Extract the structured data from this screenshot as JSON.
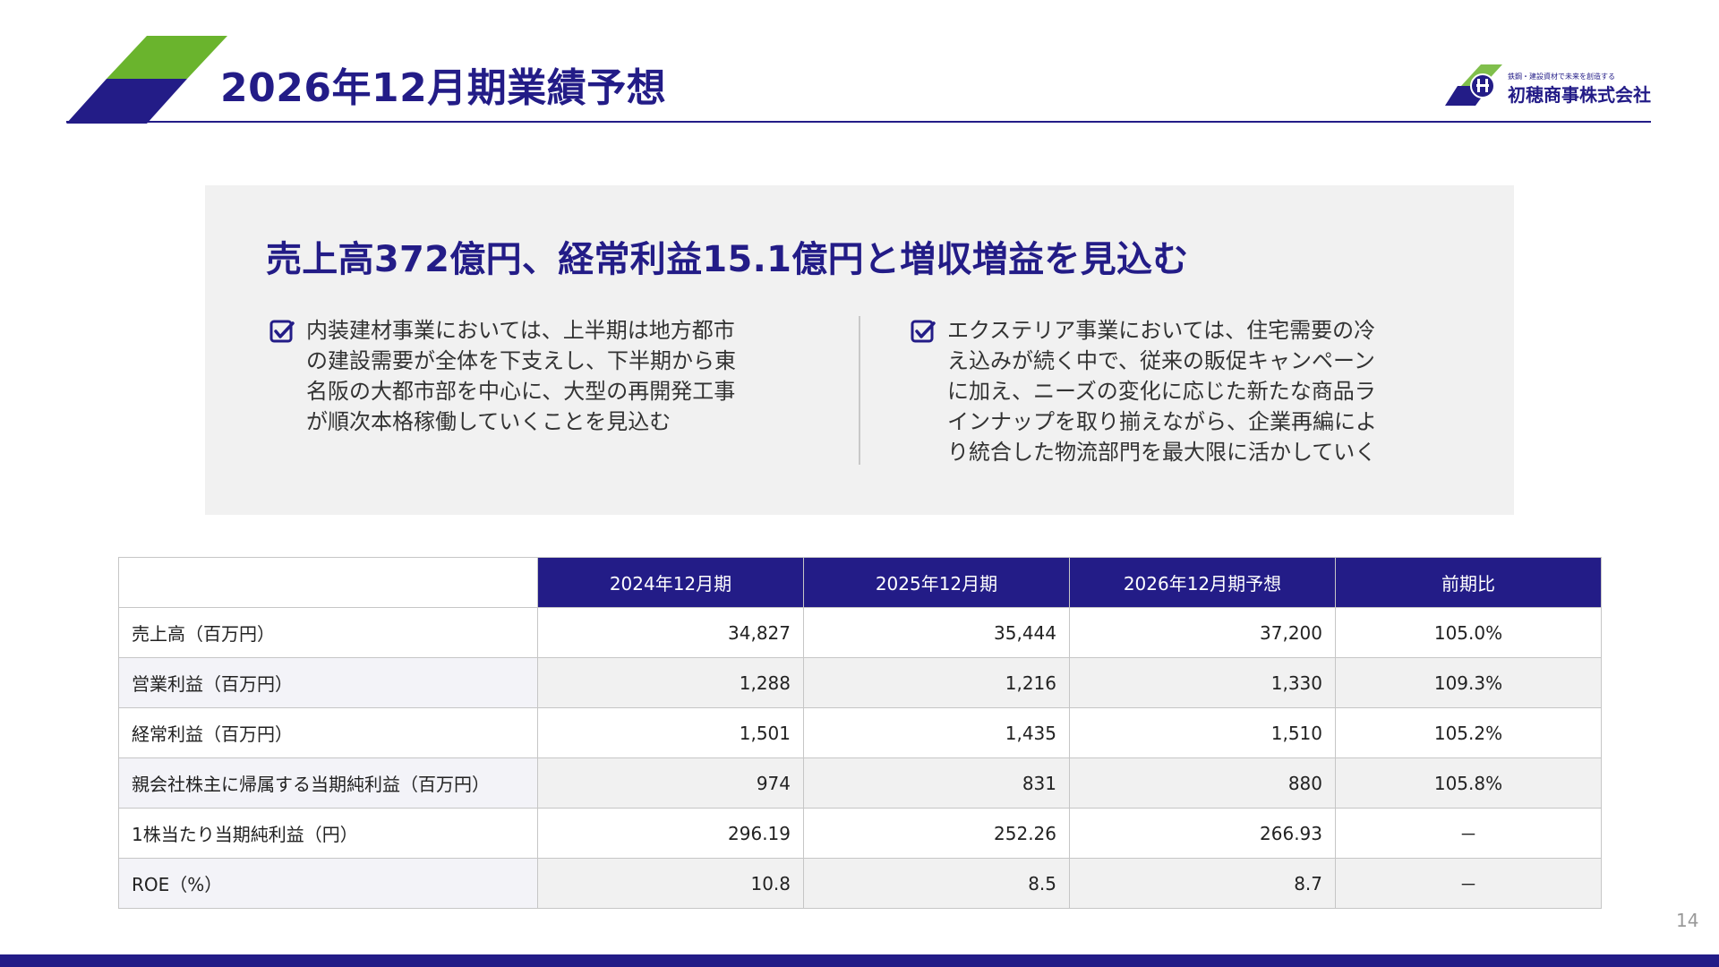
{
  "colors": {
    "navy": "#231c87",
    "green": "#6ab42d",
    "panel": "#f1f1f1"
  },
  "header": {
    "title": "2026年12月期業績予想"
  },
  "logo": {
    "tagline": "鉄鋼・建設資材で未来を創造する",
    "name": "初穂商事株式会社"
  },
  "summary": {
    "headline": "売上高372億円、経常利益15.1億円と増収増益を見込む",
    "points": [
      {
        "icon": "checkbox-icon",
        "text": "内装建材事業においては、上半期は地方都市\nの建設需要が全体を下支えし、下半期から東\n名阪の大都市部を中心に、大型の再開発工事\nが順次本格稼働していくことを見込む"
      },
      {
        "icon": "checkbox-icon",
        "text": "エクステリア事業においては、住宅需要の冷\nえ込みが続く中で、従来の販促キャンペーン\nに加え、ニーズの変化に応じた新たな商品ラ\nインナップを取り揃えながら、企業再編によ\nり統合した物流部門を最大限に活かしていく"
      }
    ]
  },
  "table": {
    "headers": [
      "",
      "2024年12月期",
      "2025年12月期",
      "2026年12月期予想",
      "前期比"
    ],
    "rows": [
      [
        "売上高（百万円）",
        "34,827",
        "35,444",
        "37,200",
        "105.0%"
      ],
      [
        "営業利益（百万円）",
        "1,288",
        "1,216",
        "1,330",
        "109.3%"
      ],
      [
        "経常利益（百万円）",
        "1,501",
        "1,435",
        "1,510",
        "105.2%"
      ],
      [
        "親会社株主に帰属する当期純利益（百万円）",
        "974",
        "831",
        "880",
        "105.8%"
      ],
      [
        "1株当たり当期純利益（円）",
        "296.19",
        "252.26",
        "266.93",
        "－"
      ],
      [
        "ROE（%）",
        "10.8",
        "8.5",
        "8.7",
        "－"
      ]
    ]
  },
  "page_number": "14"
}
